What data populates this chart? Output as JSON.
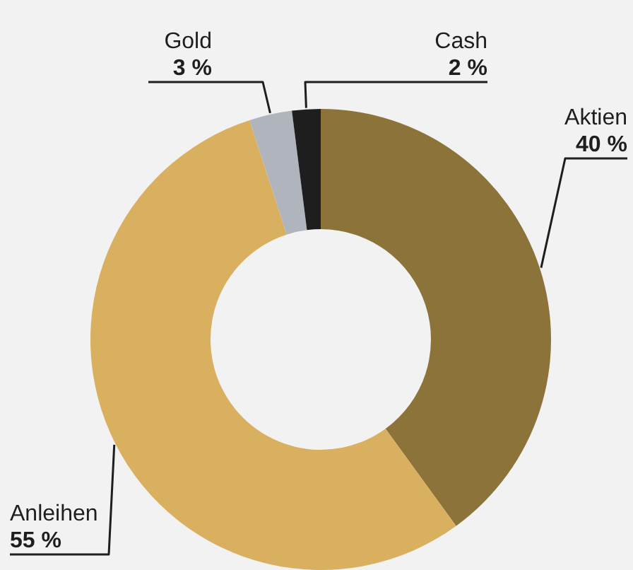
{
  "chart_data": {
    "type": "donut",
    "categories": [
      "Aktien",
      "Anleihen",
      "Gold",
      "Cash"
    ],
    "values": [
      40,
      55,
      3,
      2
    ],
    "colors": [
      "#8b7339",
      "#d8b060",
      "#b0b4bc",
      "#1e1e1e"
    ],
    "value_labels": [
      "40 %",
      "55 %",
      "3 %",
      "2 %"
    ]
  }
}
